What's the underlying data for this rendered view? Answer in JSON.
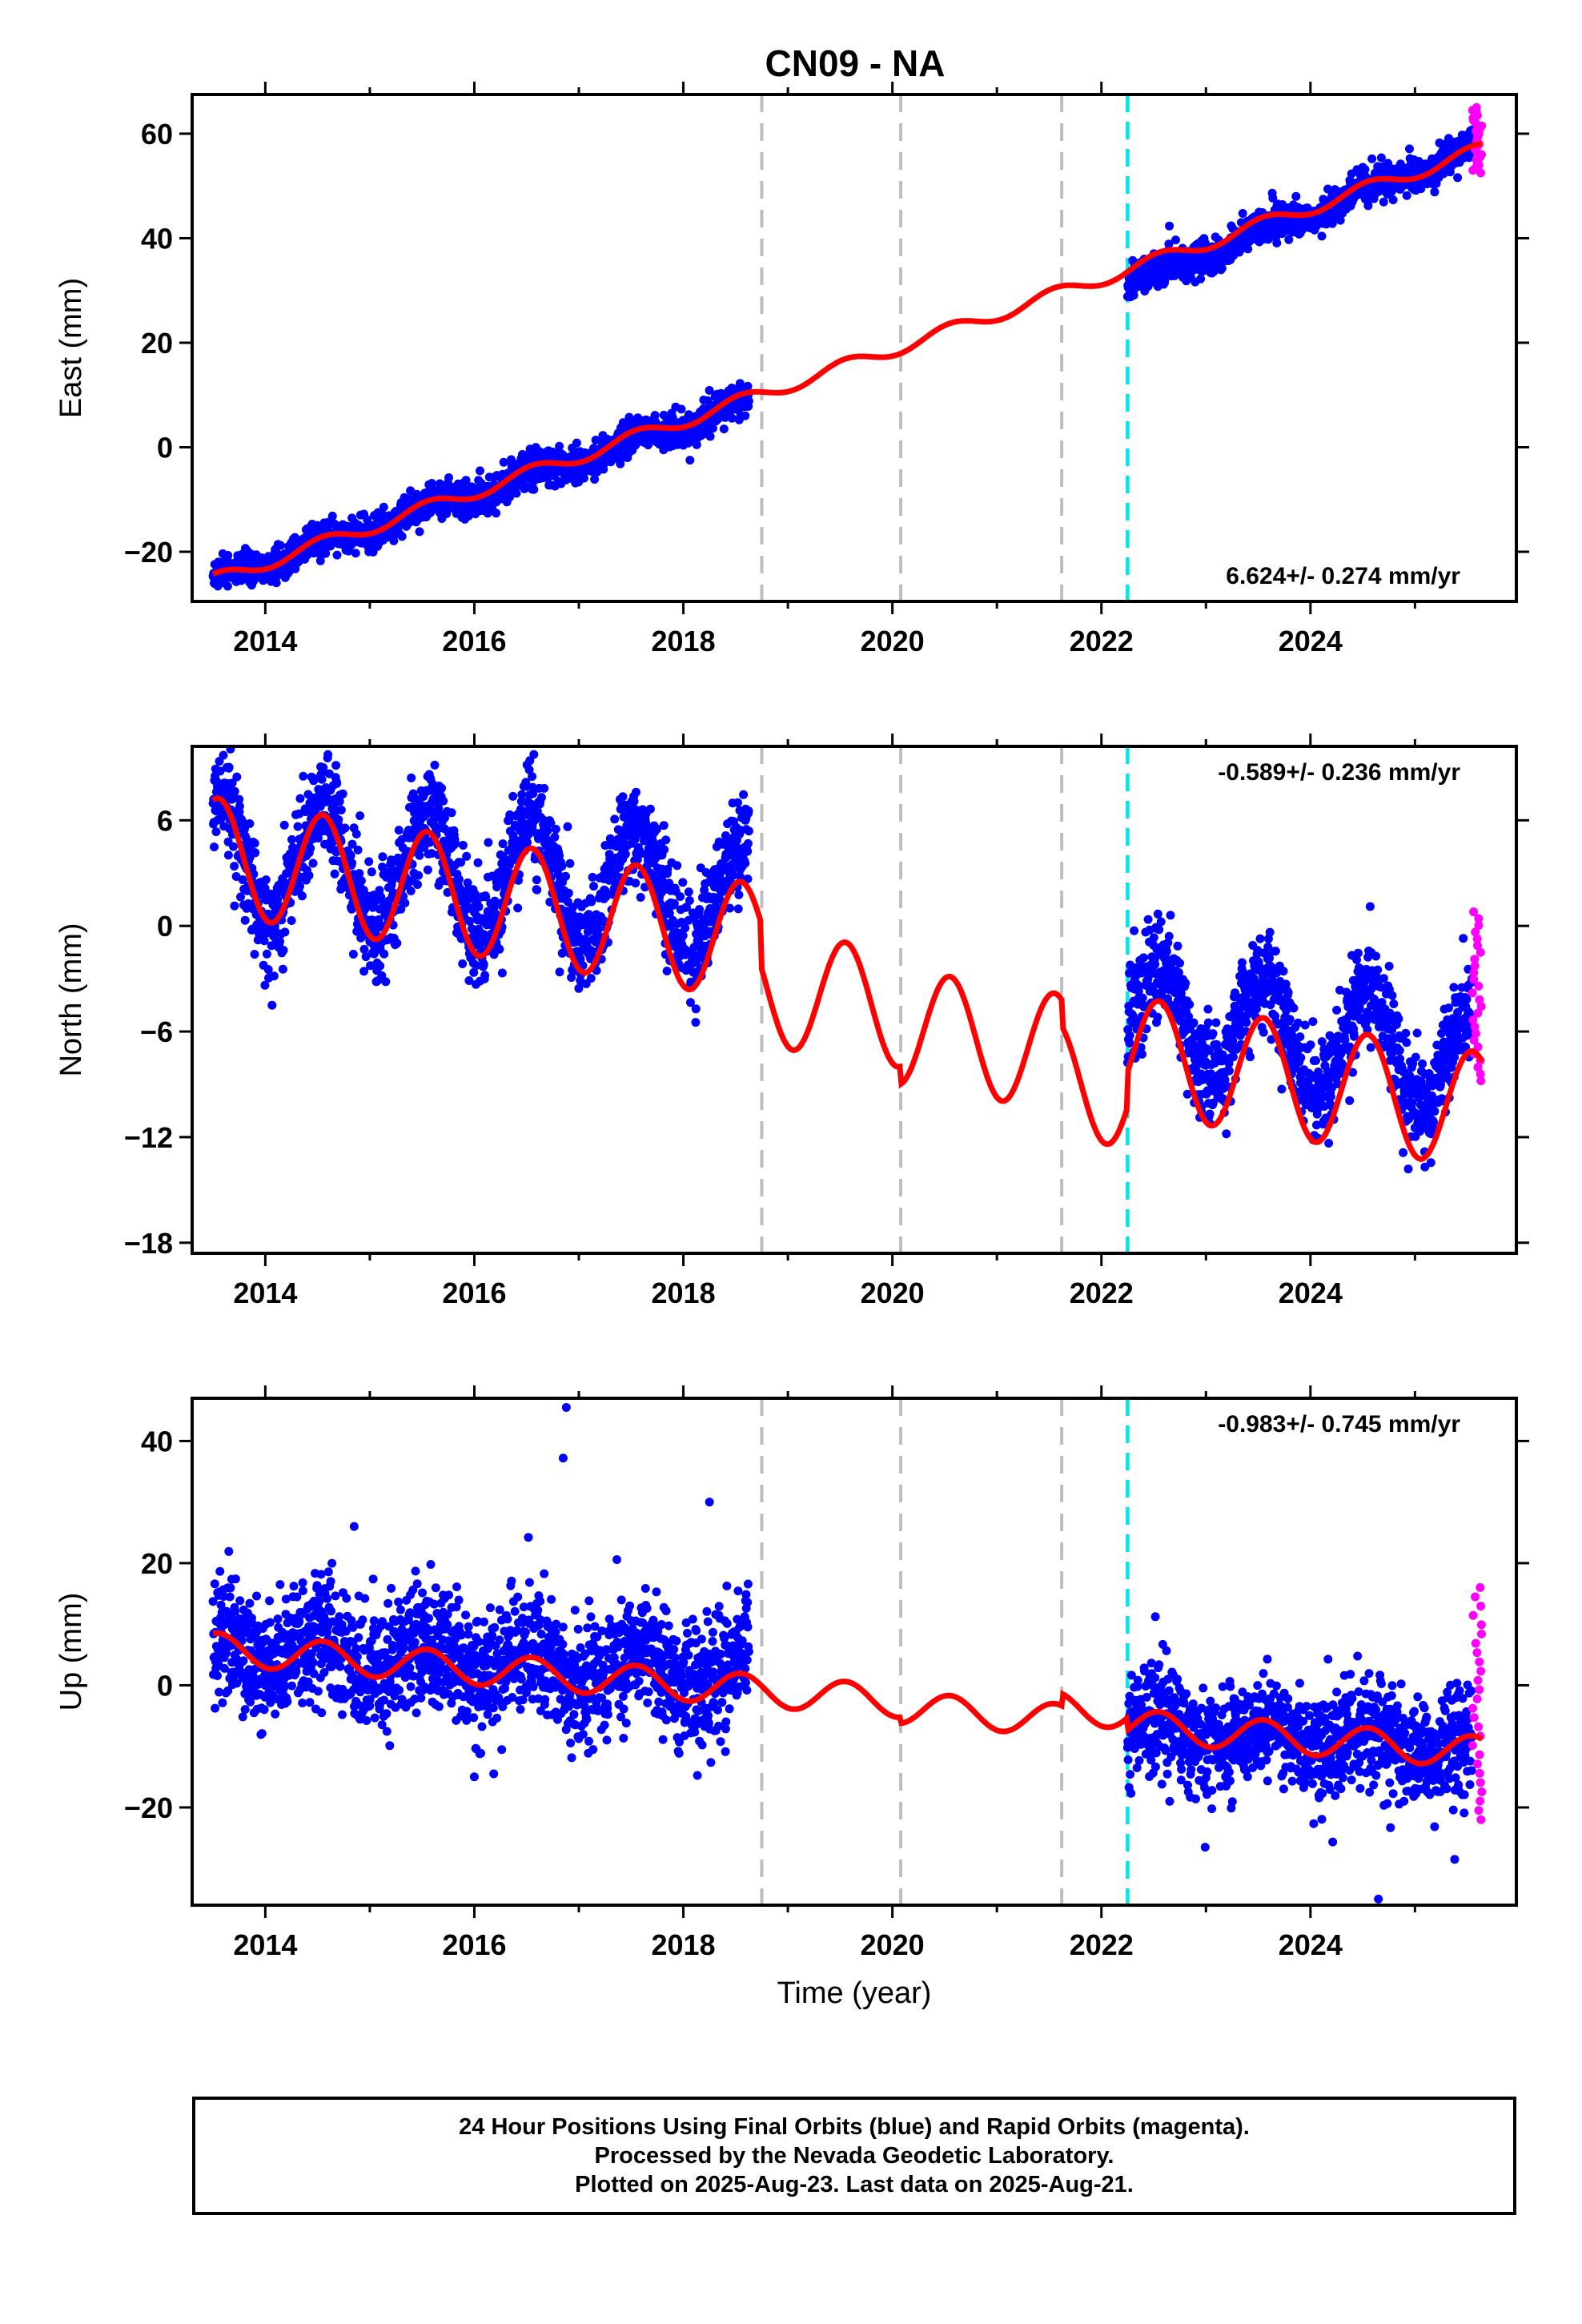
{
  "title": "CN09 - NA",
  "colors": {
    "final_orbits": "#0000ff",
    "rapid_orbits": "#ff00ff",
    "model": "#ff0000",
    "antenna_change": "#00e5e5",
    "event_lines": "#bdbdbd",
    "frame": "#000000"
  },
  "footer": {
    "line1": "24 Hour Positions Using Final Orbits (blue) and Rapid Orbits (magenta).",
    "line2": "Processed by the Nevada Geodetic Laboratory.",
    "line3": "Plotted on 2025-Aug-23. Last data on 2025-Aug-21."
  },
  "chart_data": [
    {
      "type": "scatter",
      "component": "east",
      "ylabel": "East (mm)",
      "xlabel": "",
      "xlim": [
        2013.3,
        2025.97
      ],
      "ylim": [
        -29.5,
        67.5
      ],
      "xticks": [
        2014,
        2016,
        2018,
        2020,
        2022,
        2024
      ],
      "yticks": [
        -20,
        0,
        20,
        40,
        60
      ],
      "rate_label": "6.624+/- 0.274 mm/yr",
      "rate_label_position": "bottom-right",
      "event_lines_dashed_gray": [
        2018.75,
        2020.08,
        2021.62
      ],
      "event_line_cyan": 2022.25,
      "final_orbit_segments": [
        {
          "start": 2013.5,
          "end": 2018.63,
          "trend_start": -25.5,
          "trend_end": 8.5,
          "annual_amplitude": 1.2,
          "scatter": 1.6
        },
        {
          "start": 2022.25,
          "end": 2025.55,
          "trend_start": 31.0,
          "trend_end": 57.0,
          "annual_amplitude": 1.3,
          "scatter": 1.6
        }
      ],
      "rapid_orbit_segment": {
        "start": 2025.55,
        "end": 2025.64,
        "center": 58.5,
        "min": 52.5,
        "max": 65.0
      },
      "model_curve": {
        "x_start": 2013.5,
        "x_end": 2025.64,
        "y_start": -25.5,
        "y_end": 57.0,
        "annual_amplitude": 1.3,
        "steps": []
      }
    },
    {
      "type": "scatter",
      "component": "north",
      "ylabel": "North (mm)",
      "xlabel": "",
      "xlim": [
        2013.3,
        2025.97
      ],
      "ylim": [
        -18.6,
        10.2
      ],
      "xticks": [
        2014,
        2016,
        2018,
        2020,
        2022,
        2024
      ],
      "yticks": [
        -18,
        -12,
        -6,
        0,
        6
      ],
      "rate_label": "-0.589+/- 0.236 mm/yr",
      "rate_label_position": "top-right",
      "event_lines_dashed_gray": [
        2018.75,
        2020.08,
        2021.62
      ],
      "event_line_cyan": 2022.25,
      "final_orbit_segments": [
        {
          "start": 2013.5,
          "end": 2018.63,
          "trend_start": 4.0,
          "trend_end": 1.7,
          "annual_amplitude": 3.4,
          "scatter": 1.5
        },
        {
          "start": 2022.25,
          "end": 2025.55,
          "trend_start": -5.0,
          "trend_end": -7.5,
          "annual_amplitude": 3.0,
          "scatter": 1.4
        }
      ],
      "rapid_orbit_segment": {
        "start": 2025.55,
        "end": 2025.64,
        "center": -5.0,
        "min": -8.8,
        "max": 0.8
      },
      "model_curve": {
        "x_start": 2013.5,
        "x_end": 2025.64,
        "y_start": 4.0,
        "y_end": -7.5,
        "annual_amplitude": 3.3,
        "steps": [
          [
            2018.75,
            -2.5
          ],
          [
            2020.08,
            -1.0
          ],
          [
            2021.62,
            -1.5
          ],
          [
            2022.25,
            2.0
          ]
        ]
      }
    },
    {
      "type": "scatter",
      "component": "up",
      "ylabel": "Up (mm)",
      "xlabel": "Time (year)",
      "xlim": [
        2013.3,
        2025.97
      ],
      "ylim": [
        -36.0,
        47.0
      ],
      "xticks": [
        2014,
        2016,
        2018,
        2020,
        2022,
        2024
      ],
      "yticks": [
        -20,
        0,
        20,
        40
      ],
      "rate_label": "-0.983+/- 0.745 mm/yr",
      "rate_label_position": "top-right",
      "event_lines_dashed_gray": [
        2018.75,
        2020.08,
        2021.62
      ],
      "event_line_cyan": 2022.25,
      "final_orbit_segments": [
        {
          "start": 2013.5,
          "end": 2018.63,
          "trend_start": 6.0,
          "trend_end": 1.5,
          "annual_amplitude": 2.6,
          "scatter": 5.2
        },
        {
          "start": 2022.25,
          "end": 2025.55,
          "trend_start": -7.0,
          "trend_end": -10.0,
          "annual_amplitude": 2.2,
          "scatter": 4.3
        }
      ],
      "rapid_orbit_segment": {
        "start": 2025.55,
        "end": 2025.64,
        "center": -3.0,
        "min": -22.0,
        "max": 16.0
      },
      "outliers": [
        [
          2016.88,
          45.5
        ],
        [
          2016.85,
          37.2
        ],
        [
          2018.25,
          30.0
        ],
        [
          2024.65,
          -35.0
        ],
        [
          2025.38,
          -28.5
        ],
        [
          2014.85,
          26.0
        ]
      ],
      "model_curve": {
        "x_start": 2013.5,
        "x_end": 2025.64,
        "y_start": 6.0,
        "y_end": -10.0,
        "annual_amplitude": 2.6,
        "steps": [
          [
            2020.08,
            -1.0
          ],
          [
            2021.62,
            2.0
          ],
          [
            2022.25,
            -2.0
          ]
        ]
      }
    }
  ]
}
